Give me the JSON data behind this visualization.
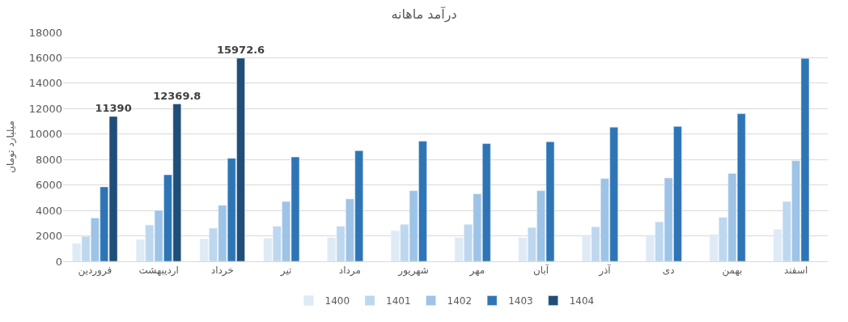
{
  "chart_data": {
    "type": "bar",
    "title": "درآمد ماهانه",
    "ylabel": "میلیارد تومان",
    "categories": [
      "فروردین",
      "اردیبهشت",
      "خرداد",
      "تیر",
      "مرداد",
      "شهریور",
      "مهر",
      "آبان",
      "آذر",
      "دی",
      "بهمن",
      "اسفند"
    ],
    "series": [
      {
        "name": "1400",
        "color": "#deebf7",
        "values": [
          1400,
          1700,
          1750,
          1800,
          1850,
          2400,
          1850,
          1850,
          1950,
          2050,
          2100,
          2500
        ]
      },
      {
        "name": "1401",
        "color": "#bdd7ee",
        "values": [
          1950,
          2850,
          2600,
          2750,
          2750,
          2900,
          2900,
          2650,
          2700,
          3100,
          3450,
          4700
        ]
      },
      {
        "name": "1402",
        "color": "#9dc3e6",
        "values": [
          3400,
          4000,
          4400,
          4700,
          4900,
          5550,
          5300,
          5550,
          6500,
          6550,
          6900,
          7900
        ]
      },
      {
        "name": "1403",
        "color": "#2e75b6",
        "values": [
          5850,
          6800,
          8100,
          8200,
          8700,
          9450,
          9250,
          9400,
          10550,
          10600,
          11600,
          15950
        ]
      },
      {
        "name": "1404",
        "color": "#1f4e79",
        "values": [
          11390,
          12369.8,
          15972.6,
          null,
          null,
          null,
          null,
          null,
          null,
          null,
          null,
          null
        ],
        "value_labels": [
          "11390",
          "12369.8",
          "15972.6",
          null,
          null,
          null,
          null,
          null,
          null,
          null,
          null,
          null
        ]
      }
    ],
    "ylim": [
      0,
      18000
    ],
    "yticks": [
      0,
      2000,
      4000,
      6000,
      8000,
      10000,
      12000,
      14000,
      16000,
      18000
    ],
    "grid": "y",
    "legend": "bottom"
  }
}
